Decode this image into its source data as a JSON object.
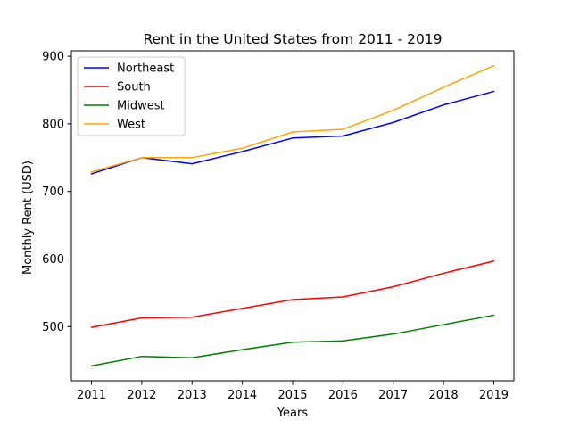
{
  "chart_data": {
    "type": "line",
    "title": "Rent in the United States from 2011 - 2019",
    "xlabel": "Years",
    "ylabel": "Monthly Rent (USD)",
    "x": [
      2011,
      2012,
      2013,
      2014,
      2015,
      2016,
      2017,
      2018,
      2019
    ],
    "xticks": [
      "2011",
      "2012",
      "2013",
      "2014",
      "2015",
      "2016",
      "2017",
      "2018",
      "2019"
    ],
    "yticks": [
      500,
      600,
      700,
      800,
      900
    ],
    "ytick_labels": [
      "500",
      "600",
      "700",
      "800",
      "900"
    ],
    "xlim": [
      2010.6,
      2019.4
    ],
    "ylim": [
      420,
      908
    ],
    "grid": false,
    "legend_position": "top-left",
    "series": [
      {
        "name": "Northeast",
        "color": "#0000ff",
        "values": [
          726,
          750,
          741,
          759,
          779,
          782,
          802,
          828,
          848
        ]
      },
      {
        "name": "South",
        "color": "#ff0000",
        "values": [
          499,
          513,
          514,
          527,
          540,
          544,
          559,
          579,
          597
        ]
      },
      {
        "name": "Midwest",
        "color": "#008000",
        "values": [
          442,
          456,
          454,
          466,
          477,
          479,
          489,
          503,
          517
        ]
      },
      {
        "name": "West",
        "color": "#ffa500",
        "values": [
          729,
          750,
          750,
          764,
          788,
          792,
          820,
          854,
          886
        ]
      }
    ]
  }
}
